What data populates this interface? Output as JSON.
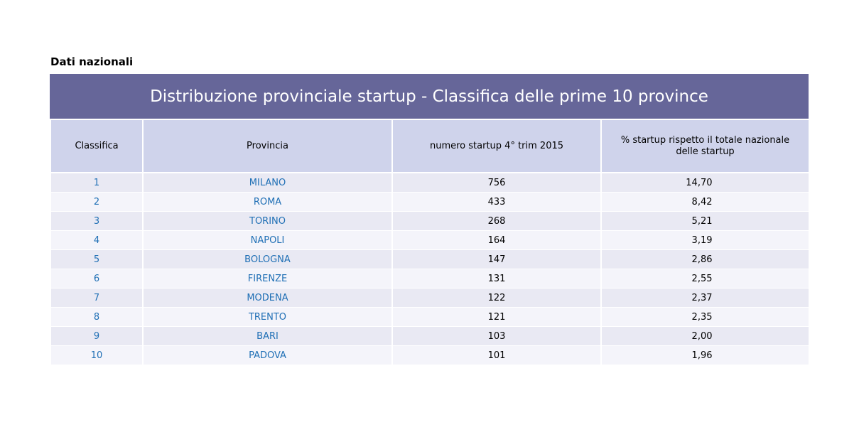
{
  "heading": "Dati nazionali",
  "table": {
    "title": "Distribuzione provinciale startup - Classifica delle prime 10 province",
    "headers": {
      "rank": "Classifica",
      "province": "Provincia",
      "count": "numero startup 4° trim 2015",
      "pct": "% startup rispetto il totale nazionale delle startup"
    },
    "rows": [
      {
        "rank": "1",
        "province": "MILANO",
        "count": "756",
        "pct": "14,70"
      },
      {
        "rank": "2",
        "province": "ROMA",
        "count": "433",
        "pct": "8,42"
      },
      {
        "rank": "3",
        "province": "TORINO",
        "count": "268",
        "pct": "5,21"
      },
      {
        "rank": "4",
        "province": "NAPOLI",
        "count": "164",
        "pct": "3,19"
      },
      {
        "rank": "5",
        "province": "BOLOGNA",
        "count": "147",
        "pct": "2,86"
      },
      {
        "rank": "6",
        "province": "FIRENZE",
        "count": "131",
        "pct": "2,55"
      },
      {
        "rank": "7",
        "province": "MODENA",
        "count": "122",
        "pct": "2,37"
      },
      {
        "rank": "8",
        "province": "TRENTO",
        "count": "121",
        "pct": "2,35"
      },
      {
        "rank": "9",
        "province": "BARI",
        "count": "103",
        "pct": "2,00"
      },
      {
        "rank": "10",
        "province": "PADOVA",
        "count": "101",
        "pct": "1,96"
      }
    ]
  },
  "colors": {
    "banner": "#666699",
    "header": "#cfd3eb",
    "row_odd": "#e9e9f3",
    "row_even": "#f4f4fa",
    "link_blue": "#1f6fb5"
  }
}
